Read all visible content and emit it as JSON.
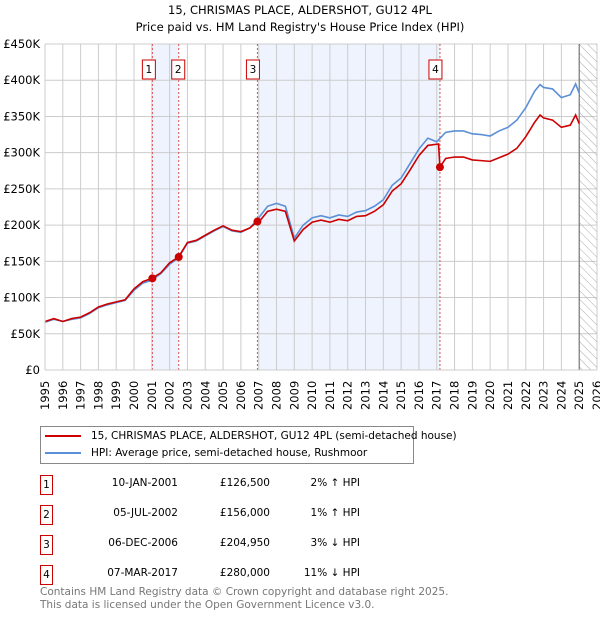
{
  "chart_data": {
    "type": "line",
    "title": "15, CHRISMAS PLACE, ALDERSHOT, GU12 4PL",
    "subtitle": "Price paid vs. HM Land Registry's House Price Index (HPI)",
    "xlim": [
      1995,
      2026
    ],
    "ylim": [
      0,
      450000
    ],
    "y_ticks": [
      0,
      50000,
      100000,
      150000,
      200000,
      250000,
      300000,
      350000,
      400000,
      450000
    ],
    "y_tick_labels": [
      "£0",
      "£50K",
      "£100K",
      "£150K",
      "£200K",
      "£250K",
      "£300K",
      "£350K",
      "£400K",
      "£450K"
    ],
    "x_tick_labels": [
      "1995",
      "1996",
      "1997",
      "1998",
      "1999",
      "2000",
      "2001",
      "2002",
      "2003",
      "2004",
      "2005",
      "2006",
      "2007",
      "2008",
      "2009",
      "2010",
      "2011",
      "2012",
      "2013",
      "2014",
      "2015",
      "2016",
      "2017",
      "2018",
      "2019",
      "2020",
      "2021",
      "2022",
      "2023",
      "2024",
      "2025",
      "2026"
    ],
    "grid": true,
    "shaded_ranges": [
      [
        2001.03,
        2002.51
      ],
      [
        2006.93,
        2017.18
      ]
    ],
    "forecast_hatch_from": 2025.0,
    "series": [
      {
        "name": "15, CHRISMAS PLACE, ALDERSHOT, GU12 4PL (semi-detached house)",
        "color": "#cc0000",
        "x": [
          1995,
          1995.5,
          1996,
          1996.5,
          1997,
          1997.5,
          1998,
          1998.5,
          1999,
          1999.5,
          2000,
          2000.5,
          2001,
          2001.5,
          2002,
          2002.5,
          2003,
          2003.5,
          2004,
          2004.5,
          2005,
          2005.5,
          2006,
          2006.5,
          2006.93,
          2007,
          2007.5,
          2008,
          2008.5,
          2009,
          2009.5,
          2010,
          2010.5,
          2011,
          2011.5,
          2012,
          2012.5,
          2013,
          2013.5,
          2014,
          2014.5,
          2015,
          2015.5,
          2016,
          2016.5,
          2017.1,
          2017.18,
          2017.5,
          2018,
          2018.5,
          2019,
          2019.5,
          2020,
          2020.5,
          2021,
          2021.5,
          2022,
          2022.5,
          2022.8,
          2023,
          2023.5,
          2024,
          2024.5,
          2024.8,
          2025
        ],
        "y": [
          67000,
          71000,
          67000,
          71000,
          73000,
          79000,
          87000,
          91000,
          94000,
          97000,
          112000,
          122000,
          126500,
          134000,
          148000,
          156000,
          176000,
          179000,
          186000,
          193000,
          199000,
          193000,
          191000,
          196000,
          204950,
          204000,
          219000,
          222000,
          219000,
          178000,
          194000,
          204000,
          207000,
          204000,
          208000,
          206000,
          212000,
          213000,
          219000,
          228000,
          247000,
          257000,
          276000,
          296000,
          310000,
          312000,
          280000,
          292000,
          294000,
          294000,
          290000,
          289000,
          288000,
          293000,
          298000,
          306000,
          322000,
          342000,
          352000,
          348000,
          345000,
          335000,
          338000,
          352000,
          340000
        ]
      },
      {
        "name": "HPI: Average price, semi-detached house, Rushmoor",
        "color": "#5b8fd6",
        "x": [
          1995,
          1995.5,
          1996,
          1996.5,
          1997,
          1997.5,
          1998,
          1998.5,
          1999,
          1999.5,
          2000,
          2000.5,
          2001,
          2001.5,
          2002,
          2002.5,
          2003,
          2003.5,
          2004,
          2004.5,
          2005,
          2005.5,
          2006,
          2006.5,
          2007,
          2007.5,
          2008,
          2008.5,
          2009,
          2009.5,
          2010,
          2010.5,
          2011,
          2011.5,
          2012,
          2012.5,
          2013,
          2013.5,
          2014,
          2014.5,
          2015,
          2015.5,
          2016,
          2016.5,
          2017,
          2017.5,
          2018,
          2018.5,
          2019,
          2019.5,
          2020,
          2020.5,
          2021,
          2021.5,
          2022,
          2022.5,
          2022.8,
          2023,
          2023.5,
          2024,
          2024.5,
          2024.8,
          2025
        ],
        "y": [
          66000,
          70000,
          67000,
          70000,
          72000,
          78000,
          86000,
          90000,
          93000,
          96000,
          110000,
          120000,
          124000,
          133000,
          146000,
          155000,
          175000,
          178000,
          185000,
          192000,
          198000,
          192000,
          190000,
          196000,
          210000,
          226000,
          230000,
          226000,
          182000,
          200000,
          210000,
          213000,
          210000,
          214000,
          212000,
          218000,
          220000,
          226000,
          235000,
          255000,
          265000,
          285000,
          305000,
          320000,
          315000,
          328000,
          330000,
          330000,
          326000,
          325000,
          323000,
          330000,
          335000,
          345000,
          362000,
          385000,
          394000,
          390000,
          388000,
          376000,
          380000,
          395000,
          382000
        ]
      }
    ],
    "sales": [
      {
        "label": "1",
        "x": 2001.03,
        "y": 126500
      },
      {
        "label": "2",
        "x": 2002.51,
        "y": 156000
      },
      {
        "label": "3",
        "x": 2006.93,
        "y": 204950
      },
      {
        "label": "4",
        "x": 2017.18,
        "y": 280000
      }
    ]
  },
  "legend": {
    "property": "15, CHRISMAS PLACE, ALDERSHOT, GU12 4PL (semi-detached house)",
    "hpi": "HPI: Average price, semi-detached house, Rushmoor"
  },
  "transactions": [
    {
      "num": "1",
      "date": "10-JAN-2001",
      "price": "£126,500",
      "hpi": "2% ↑ HPI"
    },
    {
      "num": "2",
      "date": "05-JUL-2002",
      "price": "£156,000",
      "hpi": "1% ↑ HPI"
    },
    {
      "num": "3",
      "date": "06-DEC-2006",
      "price": "£204,950",
      "hpi": "3% ↓ HPI"
    },
    {
      "num": "4",
      "date": "07-MAR-2017",
      "price": "£280,000",
      "hpi": "11% ↓ HPI"
    }
  ],
  "footer": {
    "line1": "Contains HM Land Registry data © Crown copyright and database right 2025.",
    "line2": "This data is licensed under the Open Government Licence v3.0."
  }
}
